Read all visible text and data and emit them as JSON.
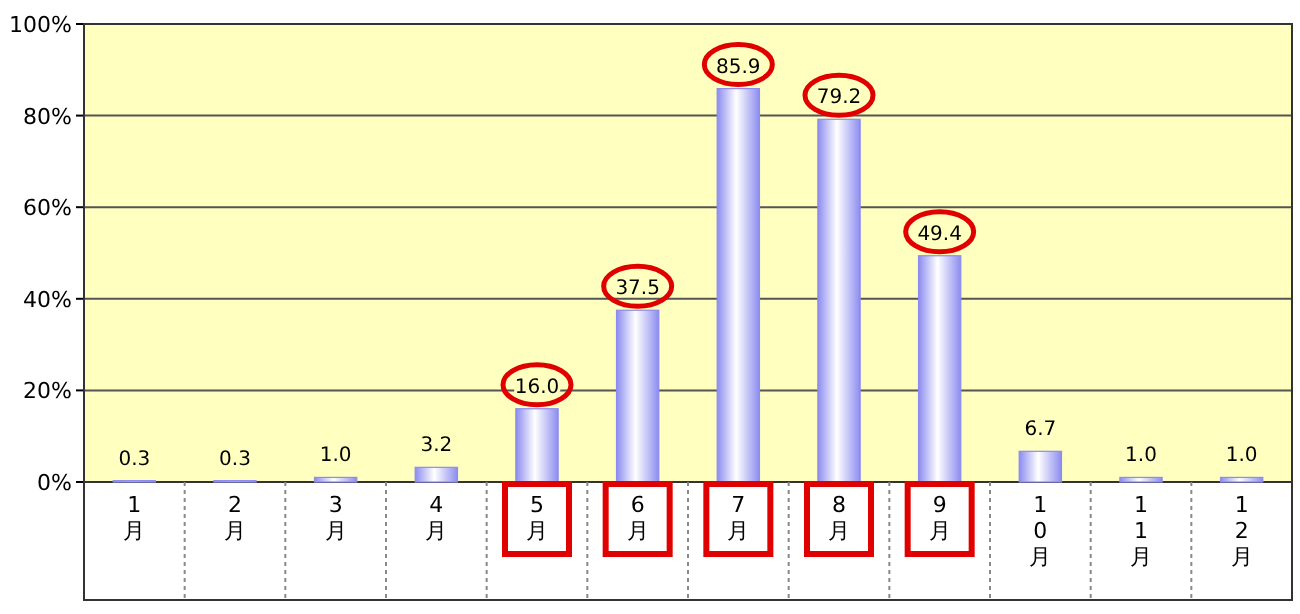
{
  "chart_data": {
    "type": "bar",
    "categories": [
      "1月",
      "2月",
      "3月",
      "4月",
      "5月",
      "6月",
      "7月",
      "8月",
      "9月",
      "10月",
      "11月",
      "12月"
    ],
    "values": [
      0.3,
      0.3,
      1.0,
      3.2,
      16.0,
      37.5,
      85.9,
      79.2,
      49.4,
      6.7,
      1.0,
      1.0
    ],
    "color": "#8c8cf0",
    "ylim": [
      0,
      100
    ],
    "yticks": [
      {
        "value": 0,
        "label": "0%"
      },
      {
        "value": 20,
        "label": "20%"
      },
      {
        "value": 40,
        "label": "40%"
      },
      {
        "value": 60,
        "label": "60%"
      },
      {
        "value": 80,
        "label": "80%"
      },
      {
        "value": 100,
        "label": "100%"
      }
    ],
    "grid": "y",
    "value_labels": [
      "0.3",
      "0.3",
      "1.0",
      "3.2",
      "16.0",
      "37.5",
      "85.9",
      "79.2",
      "49.4",
      "6.7",
      "1.0",
      "1.0"
    ]
  }
}
